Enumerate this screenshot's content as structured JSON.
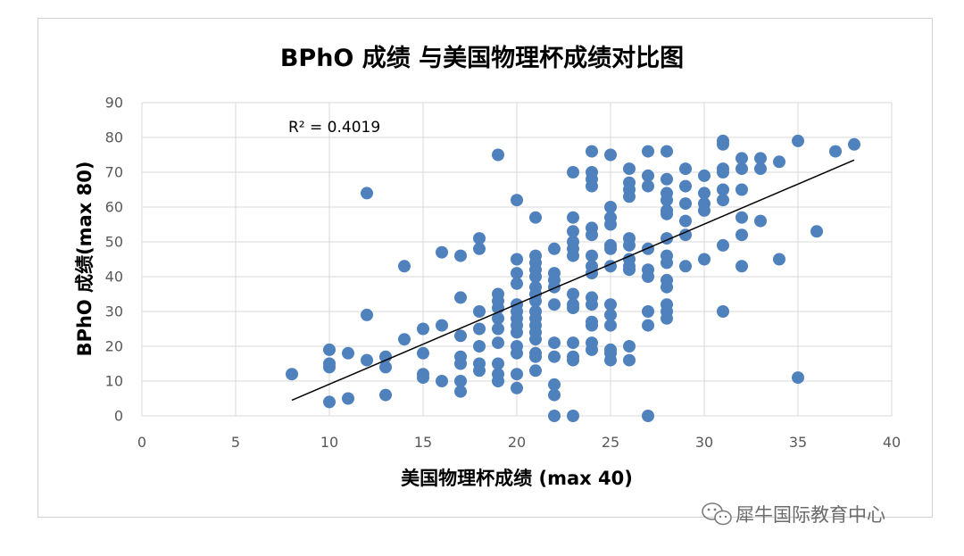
{
  "chart_data": {
    "type": "scatter",
    "title": "BPhO 成绩 与美国物理杯成绩对比图",
    "xlabel": "美国物理杯成绩 (max 40)",
    "ylabel": "BPhO 成绩(max 80)",
    "xlim": [
      0,
      40
    ],
    "ylim": [
      0,
      90
    ],
    "xticks": [
      0,
      5,
      10,
      15,
      20,
      25,
      30,
      35,
      40
    ],
    "yticks": [
      0,
      10,
      20,
      30,
      40,
      50,
      60,
      70,
      80,
      90
    ],
    "grid": "horizontal and vertical",
    "marker_color": "#4f81bd",
    "annotation": "R² = 0.4019",
    "trendline": {
      "type": "linear",
      "x": [
        8,
        38
      ],
      "y": [
        4.5,
        73.5
      ],
      "color": "#000000"
    },
    "points": [
      [
        8,
        12
      ],
      [
        10,
        19
      ],
      [
        10,
        15
      ],
      [
        10,
        14
      ],
      [
        10,
        4
      ],
      [
        11,
        18
      ],
      [
        11,
        5
      ],
      [
        12,
        64
      ],
      [
        12,
        29
      ],
      [
        12,
        16
      ],
      [
        13,
        17
      ],
      [
        13,
        14
      ],
      [
        13,
        6
      ],
      [
        14,
        43
      ],
      [
        14,
        22
      ],
      [
        15,
        25
      ],
      [
        15,
        18
      ],
      [
        15,
        12
      ],
      [
        15,
        11
      ],
      [
        16,
        47
      ],
      [
        16,
        26
      ],
      [
        16,
        10
      ],
      [
        17,
        46
      ],
      [
        17,
        34
      ],
      [
        17,
        23
      ],
      [
        17,
        17
      ],
      [
        17,
        15
      ],
      [
        17,
        10
      ],
      [
        17,
        7
      ],
      [
        18,
        51
      ],
      [
        18,
        48
      ],
      [
        18,
        30
      ],
      [
        18,
        25
      ],
      [
        18,
        20
      ],
      [
        18,
        15
      ],
      [
        18,
        13
      ],
      [
        19,
        75
      ],
      [
        19,
        35
      ],
      [
        19,
        33
      ],
      [
        19,
        31
      ],
      [
        19,
        28
      ],
      [
        19,
        25
      ],
      [
        19,
        21
      ],
      [
        19,
        15
      ],
      [
        19,
        12
      ],
      [
        19,
        10
      ],
      [
        20,
        62
      ],
      [
        20,
        45
      ],
      [
        20,
        41
      ],
      [
        20,
        38
      ],
      [
        20,
        32
      ],
      [
        20,
        30
      ],
      [
        20,
        28
      ],
      [
        20,
        26
      ],
      [
        20,
        24
      ],
      [
        20,
        20
      ],
      [
        20,
        18
      ],
      [
        20,
        12
      ],
      [
        20,
        8
      ],
      [
        21,
        57
      ],
      [
        21,
        46
      ],
      [
        21,
        44
      ],
      [
        21,
        42
      ],
      [
        21,
        40
      ],
      [
        21,
        37
      ],
      [
        21,
        35
      ],
      [
        21,
        33
      ],
      [
        21,
        30
      ],
      [
        21,
        28
      ],
      [
        21,
        26
      ],
      [
        21,
        24
      ],
      [
        21,
        22
      ],
      [
        21,
        18
      ],
      [
        21,
        17
      ],
      [
        21,
        13
      ],
      [
        22,
        48
      ],
      [
        22,
        41
      ],
      [
        22,
        39
      ],
      [
        22,
        37
      ],
      [
        22,
        32
      ],
      [
        22,
        21
      ],
      [
        22,
        17
      ],
      [
        22,
        9
      ],
      [
        22,
        6
      ],
      [
        22,
        0
      ],
      [
        23,
        70
      ],
      [
        23,
        57
      ],
      [
        23,
        53
      ],
      [
        23,
        50
      ],
      [
        23,
        48
      ],
      [
        23,
        46
      ],
      [
        23,
        35
      ],
      [
        23,
        32
      ],
      [
        23,
        31
      ],
      [
        23,
        21
      ],
      [
        23,
        17
      ],
      [
        23,
        16
      ],
      [
        23,
        0
      ],
      [
        24,
        76
      ],
      [
        24,
        70
      ],
      [
        24,
        68
      ],
      [
        24,
        66
      ],
      [
        24,
        54
      ],
      [
        24,
        52
      ],
      [
        24,
        46
      ],
      [
        24,
        43
      ],
      [
        24,
        41
      ],
      [
        24,
        34
      ],
      [
        24,
        32
      ],
      [
        24,
        27
      ],
      [
        24,
        26
      ],
      [
        24,
        21
      ],
      [
        24,
        19
      ],
      [
        25,
        75
      ],
      [
        25,
        60
      ],
      [
        25,
        57
      ],
      [
        25,
        55
      ],
      [
        25,
        49
      ],
      [
        25,
        48
      ],
      [
        25,
        43
      ],
      [
        25,
        32
      ],
      [
        25,
        29
      ],
      [
        25,
        26
      ],
      [
        25,
        19
      ],
      [
        25,
        18
      ],
      [
        25,
        16
      ],
      [
        26,
        71
      ],
      [
        26,
        67
      ],
      [
        26,
        65
      ],
      [
        26,
        63
      ],
      [
        26,
        51
      ],
      [
        26,
        49
      ],
      [
        26,
        45
      ],
      [
        26,
        43
      ],
      [
        26,
        42
      ],
      [
        26,
        20
      ],
      [
        26,
        16
      ],
      [
        27,
        76
      ],
      [
        27,
        69
      ],
      [
        27,
        66
      ],
      [
        27,
        48
      ],
      [
        27,
        42
      ],
      [
        27,
        40
      ],
      [
        27,
        30
      ],
      [
        27,
        26
      ],
      [
        27,
        0
      ],
      [
        28,
        76
      ],
      [
        28,
        68
      ],
      [
        28,
        64
      ],
      [
        28,
        62
      ],
      [
        28,
        59
      ],
      [
        28,
        58
      ],
      [
        28,
        51
      ],
      [
        28,
        46
      ],
      [
        28,
        44
      ],
      [
        28,
        39
      ],
      [
        28,
        37
      ],
      [
        28,
        32
      ],
      [
        28,
        30
      ],
      [
        28,
        28
      ],
      [
        29,
        71
      ],
      [
        29,
        66
      ],
      [
        29,
        61
      ],
      [
        29,
        56
      ],
      [
        29,
        52
      ],
      [
        29,
        43
      ],
      [
        30,
        69
      ],
      [
        30,
        64
      ],
      [
        30,
        61
      ],
      [
        30,
        59
      ],
      [
        30,
        45
      ],
      [
        31,
        79
      ],
      [
        31,
        78
      ],
      [
        31,
        71
      ],
      [
        31,
        70
      ],
      [
        31,
        65
      ],
      [
        31,
        62
      ],
      [
        31,
        49
      ],
      [
        31,
        30
      ],
      [
        32,
        74
      ],
      [
        32,
        71
      ],
      [
        32,
        65
      ],
      [
        32,
        57
      ],
      [
        32,
        52
      ],
      [
        32,
        43
      ],
      [
        33,
        74
      ],
      [
        33,
        71
      ],
      [
        33,
        56
      ],
      [
        34,
        73
      ],
      [
        34,
        45
      ],
      [
        35,
        79
      ],
      [
        35,
        11
      ],
      [
        36,
        53
      ],
      [
        37,
        76
      ],
      [
        38,
        78
      ]
    ]
  },
  "watermark": {
    "text": "犀牛国际教育中心",
    "icon": "wechat-icon"
  }
}
